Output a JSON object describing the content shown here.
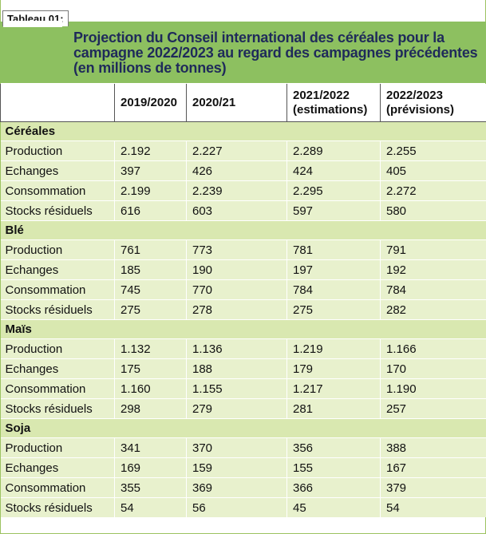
{
  "tab_label": "Tableau 01:",
  "title_lines": [
    "Projection du Conseil international des céréales pour la",
    "campagne 2022/2023 au regard des campagnes précédentes",
    "(en millions de tonnes)"
  ],
  "columns": [
    {
      "line1": "",
      "line2": ""
    },
    {
      "line1": "2019/2020",
      "line2": ""
    },
    {
      "line1": "2020/21",
      "line2": ""
    },
    {
      "line1": "2021/2022",
      "line2": "(estimations)"
    },
    {
      "line1": "2022/2023",
      "line2": "(prévisions)"
    }
  ],
  "sections": [
    {
      "name": "Céréales",
      "rows": [
        {
          "label": "Production",
          "values": [
            "2.192",
            "2.227",
            "2.289",
            "2.255"
          ]
        },
        {
          "label": "Echanges",
          "values": [
            "397",
            "426",
            "424",
            "405"
          ]
        },
        {
          "label": "Consommation",
          "values": [
            "2.199",
            "2.239",
            "2.295",
            "2.272"
          ]
        },
        {
          "label": "Stocks résiduels",
          "values": [
            "616",
            "603",
            "597",
            "580"
          ]
        }
      ]
    },
    {
      "name": "Blé",
      "rows": [
        {
          "label": "Production",
          "values": [
            "761",
            "773",
            "781",
            "791"
          ]
        },
        {
          "label": "Echanges",
          "values": [
            "185",
            "190",
            "197",
            "192"
          ]
        },
        {
          "label": "Consommation",
          "values": [
            "745",
            "770",
            "784",
            "784"
          ]
        },
        {
          "label": "Stocks résiduels",
          "values": [
            "275",
            "278",
            "275",
            "282"
          ]
        }
      ]
    },
    {
      "name": "Maïs",
      "rows": [
        {
          "label": "Production",
          "values": [
            "1.132",
            "1.136",
            "1.219",
            "1.166"
          ]
        },
        {
          "label": "Echanges",
          "values": [
            "175",
            "188",
            "179",
            "170"
          ]
        },
        {
          "label": "Consommation",
          "values": [
            "1.160",
            "1.155",
            "1.217",
            "1.190"
          ]
        },
        {
          "label": "Stocks résiduels",
          "values": [
            "298",
            "279",
            "281",
            "257"
          ]
        }
      ]
    },
    {
      "name": "Soja",
      "rows": [
        {
          "label": "Production",
          "values": [
            "341",
            "370",
            "356",
            "388"
          ]
        },
        {
          "label": "Echanges",
          "values": [
            "169",
            "159",
            "155",
            "167"
          ]
        },
        {
          "label": "Consommation",
          "values": [
            "355",
            "369",
            "366",
            "379"
          ]
        },
        {
          "label": "Stocks résiduels",
          "values": [
            "54",
            "56",
            "45",
            "54"
          ]
        }
      ]
    }
  ]
}
